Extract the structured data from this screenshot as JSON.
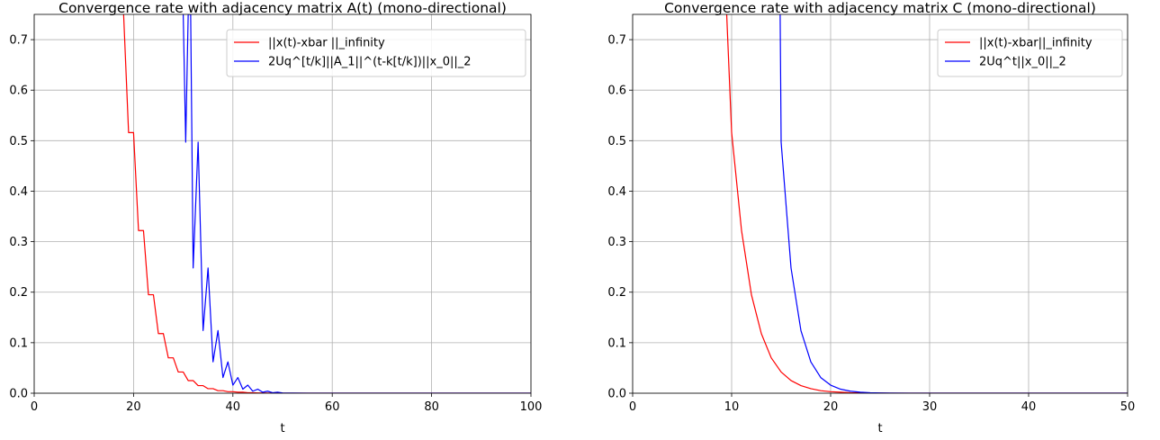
{
  "chart_data": [
    {
      "type": "line",
      "title": "Convergence rate with adjacency matrix A(t) (mono-directional)",
      "xlabel": "t",
      "ylabel": "",
      "xlim": [
        0,
        100
      ],
      "ylim": [
        0,
        0.75
      ],
      "xticks": [
        "0",
        "20",
        "40",
        "60",
        "80",
        "100"
      ],
      "yticks": [
        "0.0",
        "0.1",
        "0.2",
        "0.3",
        "0.4",
        "0.5",
        "0.6",
        "0.7"
      ],
      "grid": true,
      "legend_position": "top-right",
      "series": [
        {
          "name": "||x(t)-xbar ||_infinity",
          "color": "#ff0000",
          "x": [
            18,
            19,
            20,
            21,
            22,
            23,
            24,
            25,
            26,
            27,
            28,
            29,
            30,
            31,
            32,
            33,
            34,
            35,
            36,
            37,
            38,
            39,
            40,
            41,
            42,
            43,
            44,
            45,
            46,
            47,
            48,
            49,
            50,
            60,
            80,
            100
          ],
          "y": [
            0.75,
            0.516,
            0.516,
            0.322,
            0.322,
            0.195,
            0.195,
            0.118,
            0.118,
            0.07,
            0.07,
            0.042,
            0.042,
            0.025,
            0.025,
            0.015,
            0.015,
            0.009,
            0.009,
            0.005,
            0.005,
            0.003,
            0.003,
            0.002,
            0.002,
            0.001,
            0.001,
            0.0005,
            0.0005,
            0.0003,
            0.0003,
            0.0002,
            0.0001,
            0,
            0,
            0
          ]
        },
        {
          "name": "2Uq^[t/k]||A_1||^(t-k[t/k])||x_0||_2",
          "color": "#0000ff",
          "x": [
            30,
            30.5,
            31,
            31.5,
            32,
            33,
            34,
            35,
            36,
            37,
            38,
            39,
            40,
            41,
            42,
            43,
            44,
            45,
            46,
            47,
            48,
            49,
            50,
            52,
            55,
            60,
            80,
            100
          ],
          "y": [
            0.75,
            0.497,
            0.75,
            0.75,
            0.248,
            0.497,
            0.124,
            0.248,
            0.062,
            0.124,
            0.031,
            0.062,
            0.016,
            0.031,
            0.008,
            0.016,
            0.004,
            0.008,
            0.002,
            0.004,
            0.001,
            0.002,
            0.0005,
            0.0003,
            0.0001,
            0,
            0,
            0
          ]
        }
      ]
    },
    {
      "type": "line",
      "title": "Convergence rate with adjacency matrix C (mono-directional)",
      "xlabel": "t",
      "ylabel": "",
      "xlim": [
        0,
        50
      ],
      "ylim": [
        0,
        0.75
      ],
      "xticks": [
        "0",
        "10",
        "20",
        "30",
        "40",
        "50"
      ],
      "yticks": [
        "0.0",
        "0.1",
        "0.2",
        "0.3",
        "0.4",
        "0.5",
        "0.6",
        "0.7"
      ],
      "grid": true,
      "legend_position": "top-right",
      "series": [
        {
          "name": "||x(t)-xbar||_infinity",
          "color": "#ff0000",
          "x": [
            9.5,
            10,
            11,
            12,
            13,
            14,
            15,
            16,
            17,
            18,
            19,
            20,
            21,
            22,
            23,
            24,
            25,
            26,
            28,
            30,
            35,
            40,
            45,
            50
          ],
          "y": [
            0.75,
            0.516,
            0.322,
            0.195,
            0.118,
            0.07,
            0.042,
            0.025,
            0.015,
            0.009,
            0.005,
            0.003,
            0.002,
            0.001,
            0.0006,
            0.0003,
            0.0002,
            0.0001,
            0,
            0,
            0,
            0,
            0,
            0
          ]
        },
        {
          "name": "2Uq^t||x_0||_2",
          "color": "#0000ff",
          "x": [
            14.9,
            15,
            16,
            17,
            18,
            19,
            20,
            21,
            22,
            23,
            24,
            25,
            26,
            28,
            30,
            35,
            40,
            45,
            50
          ],
          "y": [
            0.75,
            0.497,
            0.248,
            0.124,
            0.062,
            0.031,
            0.016,
            0.008,
            0.004,
            0.002,
            0.001,
            0.0005,
            0.0002,
            0.0001,
            0,
            0,
            0,
            0,
            0
          ]
        }
      ]
    }
  ]
}
